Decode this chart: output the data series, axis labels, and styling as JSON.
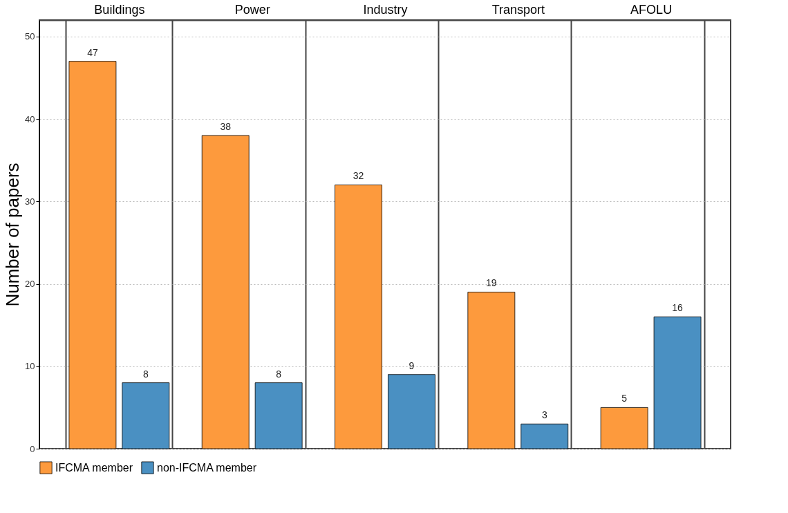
{
  "chart_data": {
    "type": "bar",
    "ylabel": "Number of papers",
    "categories": [
      "Buildings",
      "Power",
      "Industry",
      "Transport",
      "AFOLU"
    ],
    "series": [
      {
        "name": "IFCMA member",
        "color": "#fd9a3d",
        "values": [
          47,
          38,
          32,
          19,
          5
        ]
      },
      {
        "name": "non-IFCMA member",
        "color": "#4a90c2",
        "values": [
          8,
          8,
          9,
          3,
          16
        ]
      }
    ],
    "ylim": [
      0,
      52
    ],
    "yticks": [
      0,
      10,
      20,
      30,
      40,
      50
    ],
    "grid": "y",
    "legend": "bottom",
    "data_labels": true
  }
}
